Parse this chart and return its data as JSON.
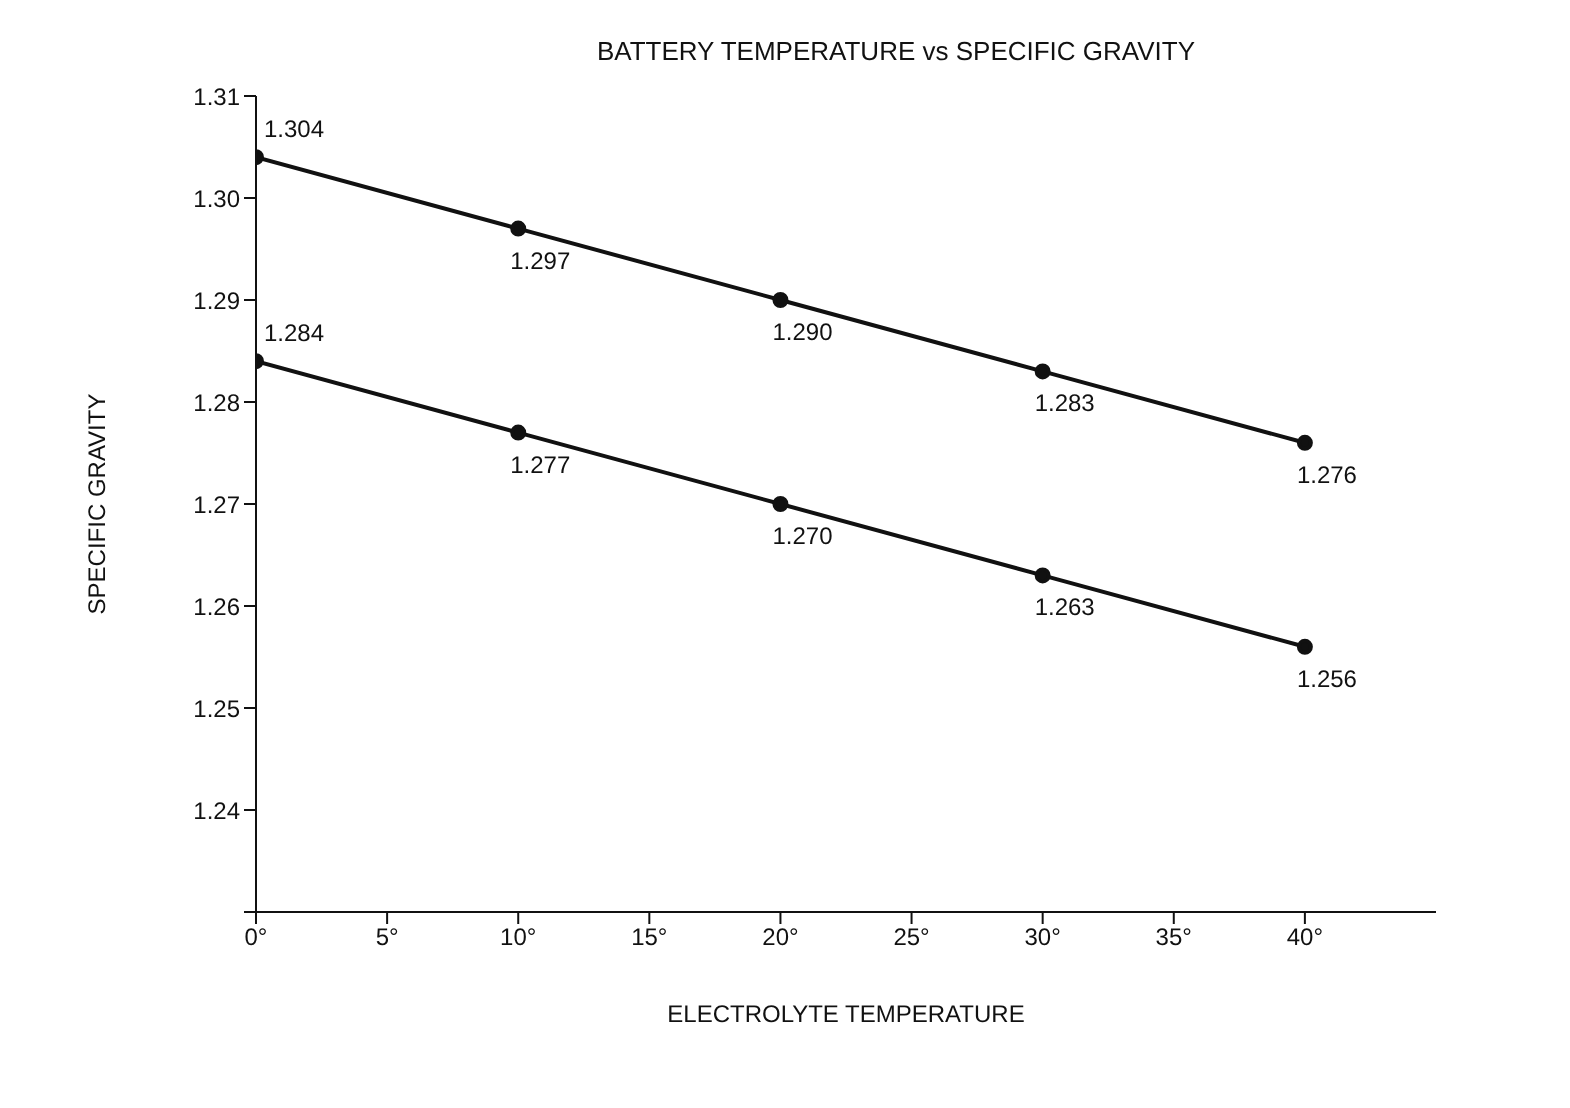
{
  "chart_data": {
    "type": "line",
    "title": "BATTERY TEMPERATURE vs SPECIFIC GRAVITY",
    "xlabel": "ELECTROLYTE TEMPERATURE",
    "ylabel": "SPECIFIC GRAVITY",
    "x": [
      0,
      10,
      20,
      30,
      40
    ],
    "series": [
      {
        "color": "#111111",
        "values": [
          1.304,
          1.297,
          1.29,
          1.283,
          1.276
        ],
        "value_labels": [
          "1.304",
          "1.297",
          "1.290",
          "1.283",
          "1.276"
        ]
      },
      {
        "color": "#111111",
        "values": [
          1.284,
          1.277,
          1.27,
          1.263,
          1.256
        ],
        "value_labels": [
          "1.284",
          "1.277",
          "1.270",
          "1.263",
          "1.256"
        ]
      }
    ],
    "xlim": [
      0,
      45
    ],
    "xticks": [
      {
        "value": 0,
        "label": "0°"
      },
      {
        "value": 5,
        "label": "5°"
      },
      {
        "value": 10,
        "label": "10°"
      },
      {
        "value": 15,
        "label": "15°"
      },
      {
        "value": 20,
        "label": "20°"
      },
      {
        "value": 25,
        "label": "25°"
      },
      {
        "value": 30,
        "label": "30°"
      },
      {
        "value": 35,
        "label": "35°"
      },
      {
        "value": 40,
        "label": "40°"
      }
    ],
    "ylim": [
      1.23,
      1.31
    ],
    "yticks": [
      {
        "value": 1.23,
        "label": null
      },
      1.24,
      1.25,
      1.26,
      1.27,
      1.28,
      1.29,
      {
        "value": 1.3,
        "label": "1.30"
      },
      1.31
    ],
    "marker": "circle",
    "line_style": "solid",
    "grid": false
  }
}
